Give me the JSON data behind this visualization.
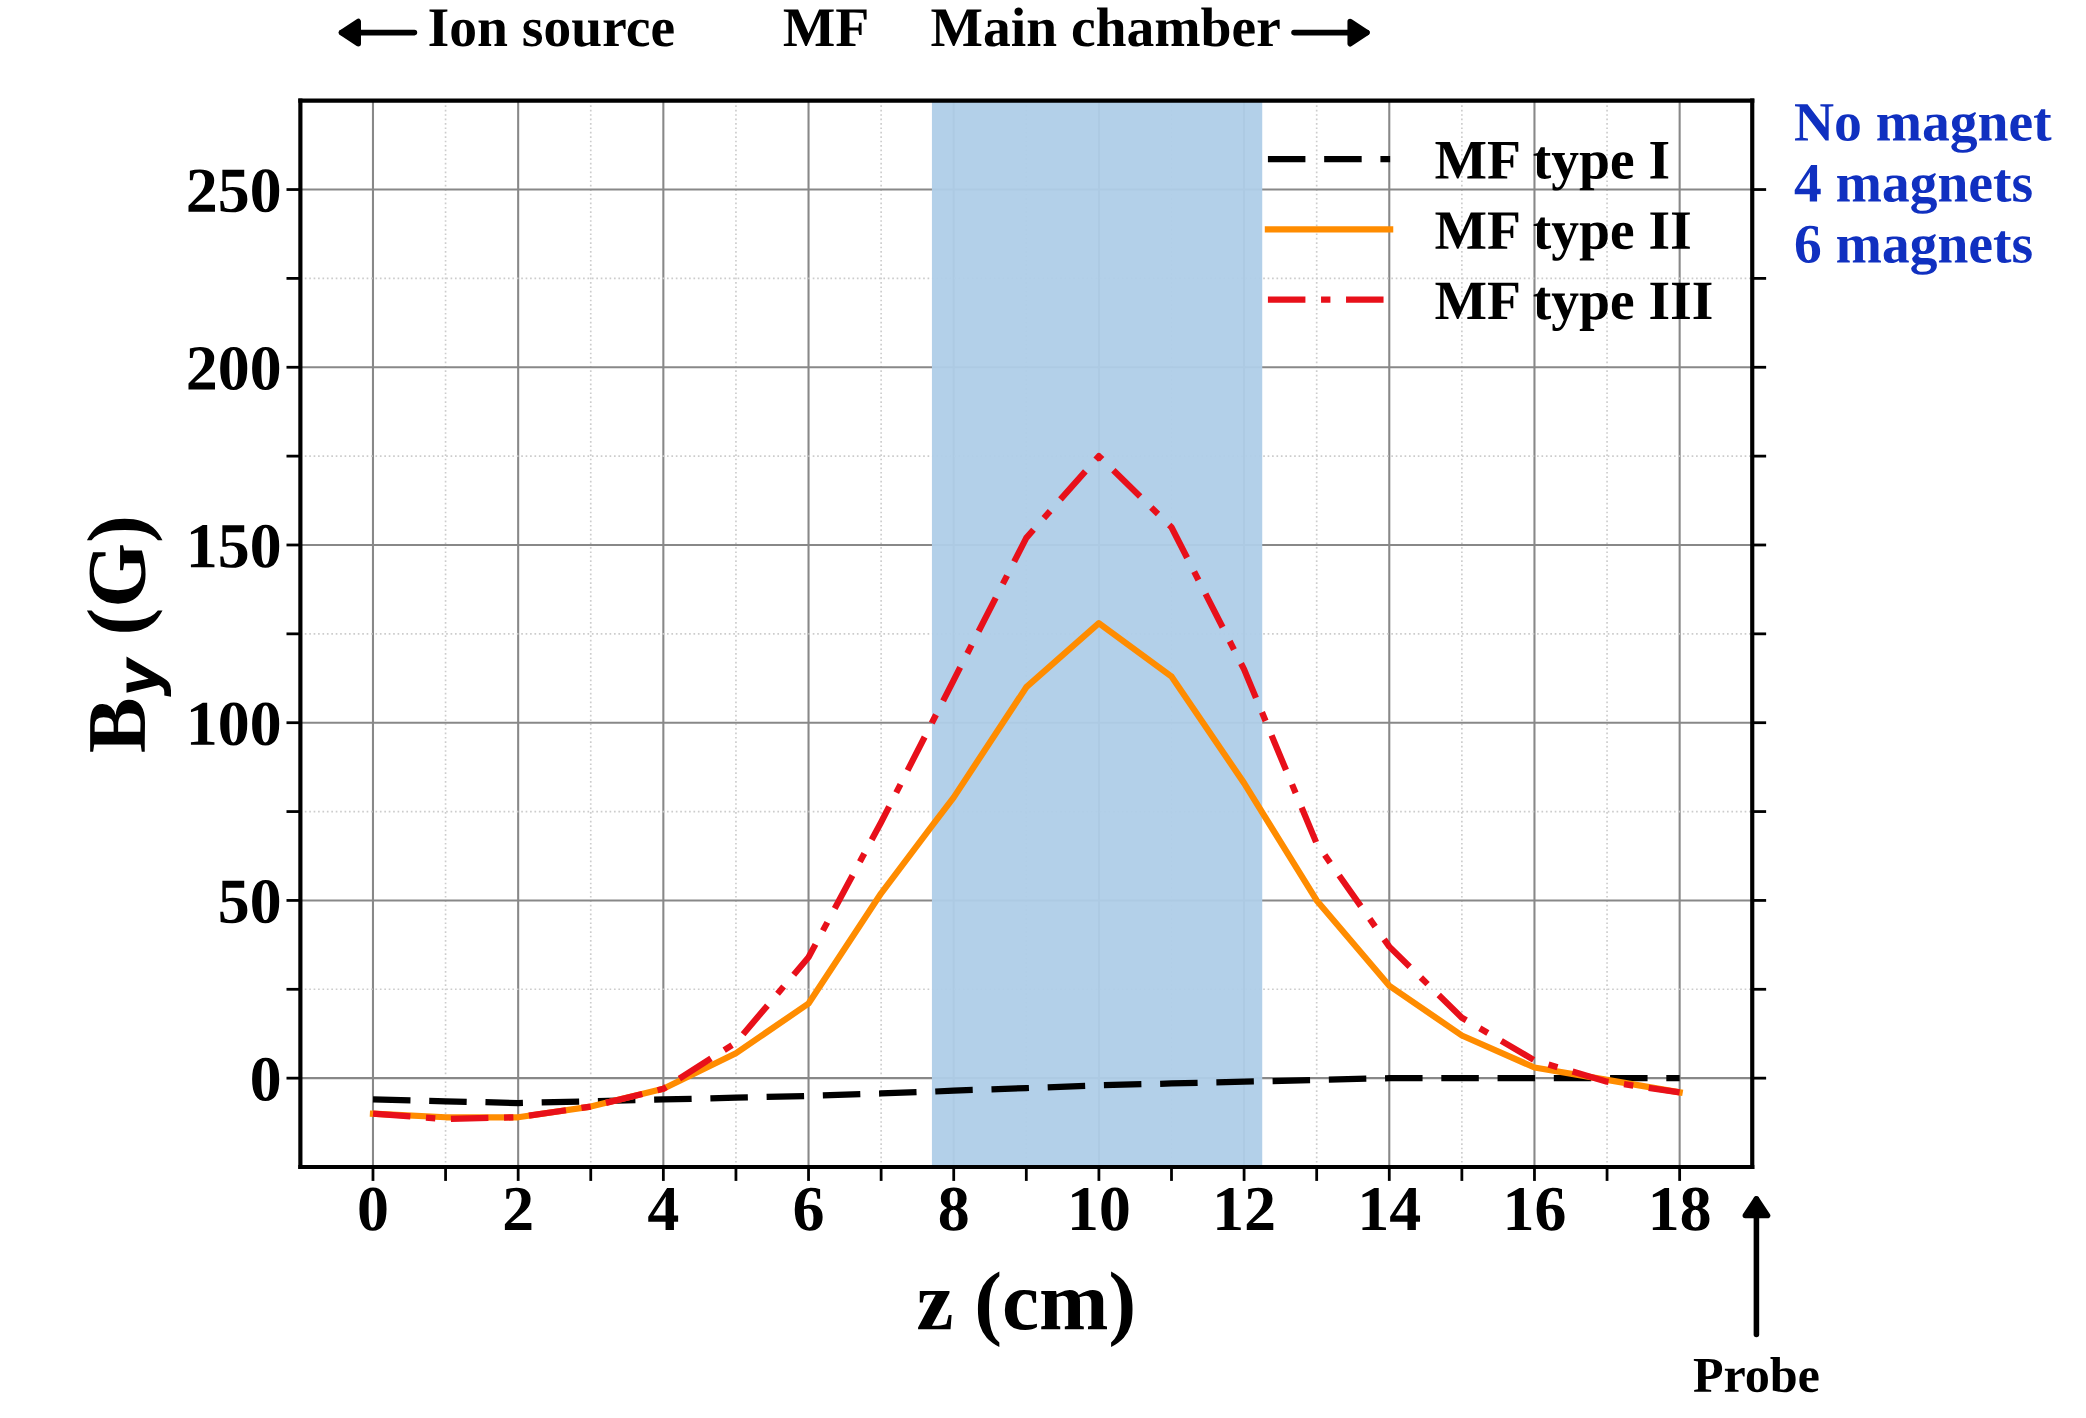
{
  "chart_data": {
    "type": "line",
    "xlabel": "z (cm)",
    "ylabel": "B$_{y}$ (G)",
    "x": [
      0,
      1,
      2,
      3,
      4,
      5,
      6,
      7,
      7.7,
      8,
      9,
      10,
      11,
      12,
      13,
      14,
      15,
      16,
      17,
      18
    ],
    "series": [
      {
        "name": "MF type I",
        "color": "#000000",
        "line_style": "dashed",
        "values": [
          -6,
          -6.5,
          -7,
          -6.5,
          -6,
          -5.5,
          -5,
          -4.3,
          -3.8,
          -3.5,
          -2.8,
          -2,
          -1.5,
          -1,
          -0.5,
          0,
          0,
          0,
          0,
          0
        ]
      },
      {
        "name": "MF type II",
        "color": "#ff8c00",
        "line_style": "solid",
        "values": [
          -10,
          -11,
          -11,
          -8,
          -3,
          7,
          21,
          52,
          71,
          79,
          110,
          128,
          113,
          83,
          50,
          26,
          12,
          3,
          -0.5,
          -4
        ]
      },
      {
        "name": "MF type III",
        "color": "#e8101a",
        "line_style": "dashdot",
        "values": [
          -10,
          -11.5,
          -11,
          -8,
          -3,
          10,
          34,
          72,
          100,
          112,
          152,
          175,
          155,
          115,
          66,
          37,
          17,
          5,
          -1,
          -4
        ]
      }
    ],
    "xlim": [
      -1,
      19
    ],
    "ylim": [
      -25,
      275
    ],
    "xticks": [
      0,
      {
        "value": 1,
        "label": null
      },
      2,
      {
        "value": 3,
        "label": null
      },
      4,
      {
        "value": 5,
        "label": null
      },
      6,
      {
        "value": 7,
        "label": null
      },
      8,
      {
        "value": 9,
        "label": null
      },
      10,
      {
        "value": 11,
        "label": null
      },
      12,
      {
        "value": 13,
        "label": null
      },
      14,
      {
        "value": 15,
        "label": null
      },
      16,
      {
        "value": 17,
        "label": null
      },
      18
    ],
    "yticks": [
      0,
      {
        "value": 25,
        "label": null
      },
      50,
      {
        "value": 75,
        "label": null
      },
      100,
      {
        "value": 125,
        "label": null
      },
      150,
      {
        "value": 175,
        "label": null
      },
      200,
      {
        "value": 225,
        "label": null
      },
      250
    ],
    "bands": [
      {
        "axis": "x",
        "from": 7.7,
        "to": 12.25,
        "color": "#afcde8"
      }
    ],
    "grid": true,
    "legend": "top right",
    "annotations": [
      "Ion source",
      "MF",
      "Main chamber",
      "Probe",
      "No magnet",
      "4 magnets",
      "6 magnets"
    ]
  }
}
